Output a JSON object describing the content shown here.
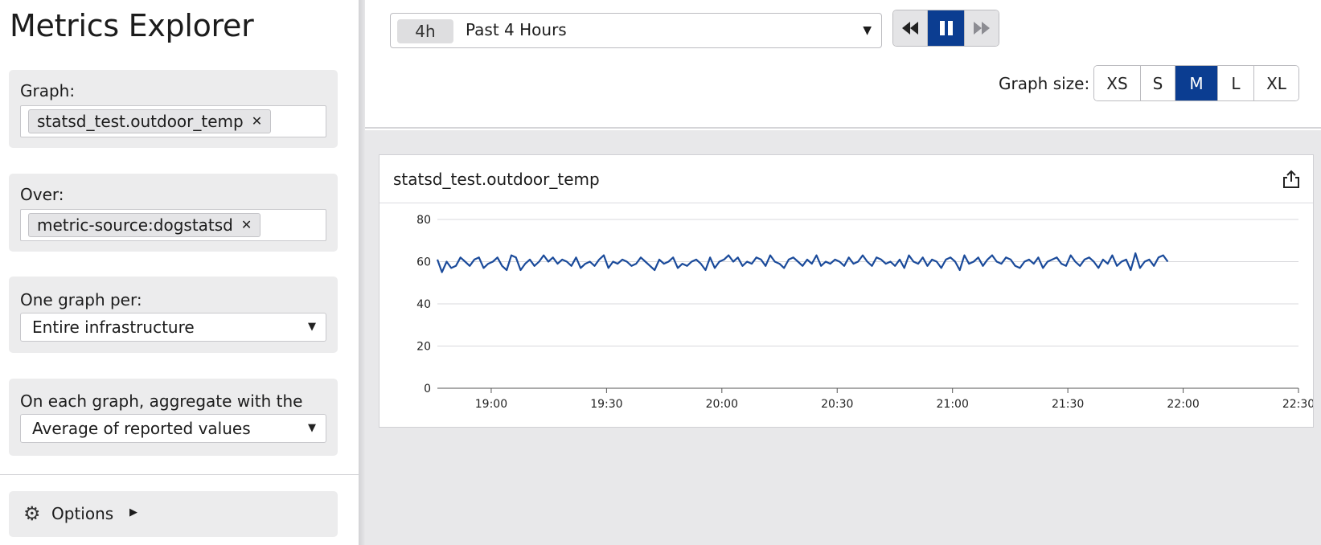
{
  "sidebar": {
    "title": "Metrics Explorer",
    "graph": {
      "label": "Graph:",
      "tag": "statsd_test.outdoor_temp"
    },
    "over": {
      "label": "Over:",
      "tag": "metric-source:dogstatsd"
    },
    "one_graph_per": {
      "label": "One graph per:",
      "value": "Entire infrastructure"
    },
    "aggregate": {
      "label": "On each graph, aggregate with the",
      "value": "Average of reported values"
    },
    "options": {
      "label": "Options"
    }
  },
  "topbar": {
    "time_badge": "4h",
    "time_label": "Past 4 Hours",
    "graph_size_label": "Graph size:",
    "graph_sizes": [
      "XS",
      "S",
      "M",
      "L",
      "XL"
    ],
    "selected_size": "M"
  },
  "graph": {
    "title": "statsd_test.outdoor_temp",
    "line_color": "#1a4a9a",
    "accent_color": "#0b3d91"
  },
  "chart_data": {
    "type": "line",
    "title": "statsd_test.outdoor_temp",
    "xlabel": "",
    "ylabel": "",
    "ylim": [
      0,
      80
    ],
    "y_ticks": [
      "0",
      "20",
      "40",
      "60",
      "80"
    ],
    "x_ticks": [
      "19:00",
      "19:30",
      "20:00",
      "20:30",
      "21:00",
      "21:30",
      "22:00",
      "22:30"
    ],
    "x_range": [
      "18:46",
      "22:30"
    ],
    "grid": true,
    "series": [
      {
        "x_start": "18:46",
        "x_end": "21:56",
        "values": [
          61,
          55,
          60,
          57,
          58,
          62,
          60,
          58,
          61,
          62,
          57,
          59,
          60,
          62,
          58,
          56,
          63,
          62,
          56,
          59,
          61,
          58,
          60,
          63,
          60,
          62,
          59,
          61,
          60,
          58,
          62,
          57,
          59,
          60,
          58,
          61,
          63,
          57,
          60,
          59,
          61,
          60,
          58,
          59,
          62,
          60,
          58,
          56,
          61,
          59,
          60,
          62,
          57,
          59,
          58,
          60,
          61,
          59,
          56,
          62,
          57,
          60,
          61,
          63,
          60,
          62,
          58,
          60,
          59,
          62,
          61,
          58,
          63,
          60,
          59,
          57,
          61,
          62,
          60,
          58,
          61,
          59,
          63,
          58,
          60,
          59,
          61,
          60,
          58,
          62,
          59,
          60,
          63,
          60,
          58,
          62,
          61,
          59,
          60,
          58,
          61,
          57,
          63,
          60,
          59,
          62,
          58,
          61,
          60,
          57,
          61,
          62,
          60,
          56,
          63,
          59,
          60,
          62,
          58,
          61,
          63,
          60,
          59,
          62,
          61,
          58,
          57,
          60,
          61,
          59,
          62,
          57,
          60,
          61,
          62,
          59,
          58,
          63,
          60,
          58,
          61,
          62,
          60,
          57,
          61,
          59,
          63,
          58,
          60,
          61,
          56,
          64,
          57,
          60,
          61,
          58,
          62,
          63,
          60
        ]
      }
    ]
  }
}
